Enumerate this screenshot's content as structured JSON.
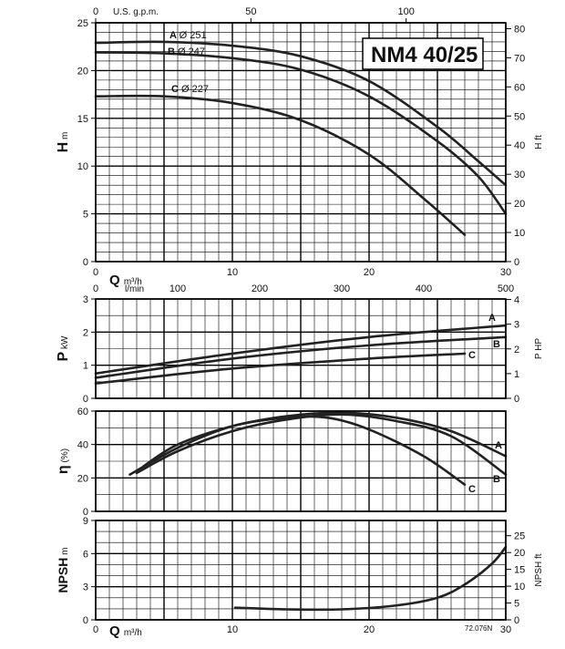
{
  "chart_data": {
    "model": "NM4 40/25",
    "code": "72.076N",
    "flow_axis": {
      "label": "Q",
      "unit_m3h": "m³/h",
      "unit_lmin": "l/min",
      "unit_gpm": "U.S. g.p.m.",
      "m3h_range": [
        0,
        30
      ],
      "m3h_ticks": [
        0,
        10,
        20,
        30
      ],
      "lmin_ticks": [
        0,
        100,
        200,
        300,
        400,
        500
      ],
      "gpm_ticks": [
        0,
        50,
        100
      ]
    },
    "panels": [
      {
        "id": "head",
        "type": "line",
        "ylabel": "H",
        "yunit": "m",
        "ylim": [
          0,
          25
        ],
        "yticks": [
          0,
          5,
          10,
          15,
          20,
          25
        ],
        "y2label": "H",
        "y2unit": "ft",
        "y2lim": [
          0,
          82.02
        ],
        "y2ticks": [
          0,
          10,
          20,
          30,
          40,
          50,
          60,
          70,
          80
        ],
        "series": [
          {
            "name": "A",
            "label_name": "A",
            "label_dia": "Ø 251",
            "x": [
              0,
              5,
              10,
              15,
              20,
              25,
              28,
              30
            ],
            "y": [
              22.9,
              23.0,
              22.6,
              21.5,
              18.9,
              14.1,
              10.5,
              8.0
            ]
          },
          {
            "name": "B",
            "label_name": "B",
            "label_dia": "Ø 247",
            "x": [
              0,
              5,
              10,
              15,
              20,
              25,
              28,
              30
            ],
            "y": [
              21.9,
              21.8,
              21.3,
              20.1,
              17.3,
              12.6,
              8.9,
              5.0
            ]
          },
          {
            "name": "C",
            "label_name": "C",
            "label_dia": "Ø 227",
            "x": [
              0,
              5,
              10,
              15,
              20,
              24,
              27
            ],
            "y": [
              17.3,
              17.3,
              16.6,
              14.8,
              11.2,
              6.6,
              2.8
            ]
          }
        ]
      },
      {
        "id": "power",
        "type": "line",
        "ylabel": "P",
        "yunit": "kW",
        "ylim": [
          0,
          3
        ],
        "yticks": [
          0,
          1,
          2,
          3
        ],
        "y2label": "P",
        "y2unit": "HP",
        "y2lim": [
          0,
          4.02
        ],
        "y2ticks": [
          0,
          1,
          2,
          3,
          4
        ],
        "series": [
          {
            "name": "A",
            "x": [
              0,
              10,
              20,
              30
            ],
            "y": [
              0.75,
              1.35,
              1.85,
              2.2
            ]
          },
          {
            "name": "B",
            "x": [
              0,
              10,
              20,
              30
            ],
            "y": [
              0.62,
              1.2,
              1.6,
              1.85
            ]
          },
          {
            "name": "C",
            "x": [
              0,
              10,
              20,
              27
            ],
            "y": [
              0.45,
              0.9,
              1.2,
              1.35
            ]
          }
        ]
      },
      {
        "id": "efficiency",
        "type": "line",
        "ylabel": "η",
        "yunit": "(%)",
        "ylim": [
          0,
          60
        ],
        "yticks": [
          0,
          20,
          40,
          60
        ],
        "series": [
          {
            "name": "A",
            "x": [
              3.5,
              6,
              10,
              14,
              18,
              22,
              26,
              30
            ],
            "y": [
              27,
              40,
              51,
              57,
              59,
              56,
              48,
              33
            ]
          },
          {
            "name": "B",
            "x": [
              3,
              6,
              10,
              14,
              18,
              22,
              26,
              30
            ],
            "y": [
              23,
              36,
              48,
              55,
              58,
              54,
              45,
              22
            ]
          },
          {
            "name": "C",
            "x": [
              2.5,
              6,
              10,
              14,
              17,
              20,
              24,
              27
            ],
            "y": [
              22,
              38,
              51,
              56,
              56,
              49,
              33,
              16
            ]
          }
        ]
      },
      {
        "id": "npsh",
        "type": "line",
        "ylabel": "NPSH",
        "yunit": "m",
        "ylim": [
          0,
          9
        ],
        "yticks": [
          0,
          3,
          6,
          9
        ],
        "y2label": "NPSH",
        "y2unit": "ft",
        "y2lim": [
          0,
          29.53
        ],
        "y2ticks": [
          0,
          5,
          10,
          15,
          20,
          25
        ],
        "series": [
          {
            "name": "NPSH",
            "x": [
              10.2,
              14,
              18,
              22,
              25,
              27,
              29,
              30
            ],
            "y": [
              1.1,
              0.95,
              0.95,
              1.3,
              2.0,
              3.2,
              5.1,
              6.6
            ]
          }
        ]
      }
    ]
  }
}
